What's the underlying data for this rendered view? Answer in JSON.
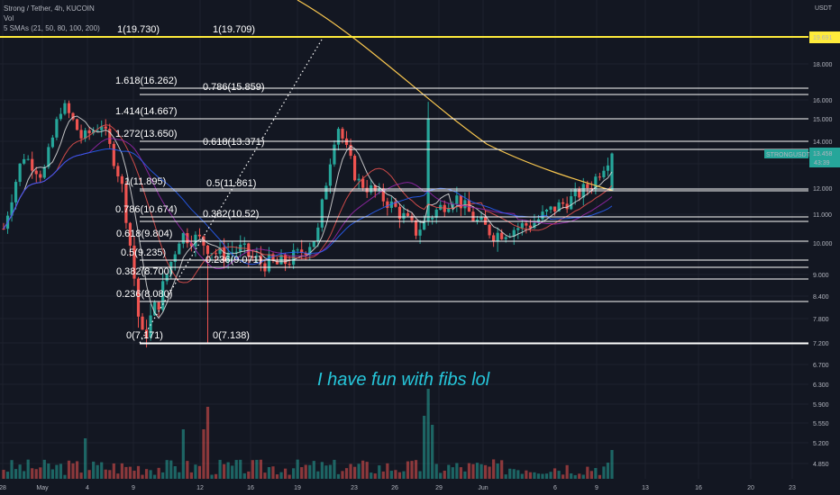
{
  "legend": {
    "title": "Strong / Tether, 4h, KUCOIN",
    "vol": "Vol",
    "smas": "5 SMAs (21, 50, 80, 100, 200)"
  },
  "price_axis": {
    "unit": "USDT",
    "ticks": [
      "18.000",
      "16.000",
      "15.000",
      "14.000",
      "13.000",
      "12.000",
      "11.000",
      "10.000",
      "9.000",
      "8.400",
      "7.800",
      "7.200",
      "6.700",
      "6.300",
      "5.900",
      "5.550",
      "5.200",
      "4.850"
    ],
    "top_badge": "19.691",
    "current_badge": {
      "symbol": "STRONGUSDT",
      "price": "13.458",
      "countdown": "43:39"
    }
  },
  "time_axis": [
    "28",
    "May",
    "4",
    "9",
    "12",
    "16",
    "19",
    "23",
    "26",
    "29",
    "Jun",
    "6",
    "9",
    "13",
    "16",
    "20",
    "23"
  ],
  "fib_left": [
    "1(19.730)",
    "1.618(16.262)",
    "1.414(14.667)",
    "1.272(13.650)",
    "1(11.895)",
    "0.786(10.674)",
    "0.618(9.804)",
    "0.5(9.235)",
    "0.382(8.700)",
    "0.236(8.080)",
    "0(7.171)"
  ],
  "fib_right": [
    "1(19.709)",
    "0.786(15.859)",
    "0.618(13.371)",
    "0.5(11.861)",
    "0.382(10.52)",
    "0.236(9.071)",
    "0(7.138)"
  ],
  "annotation": "I have fun with fibs lol",
  "colors": {
    "up": "#26a69a",
    "down": "#ef5350",
    "background": "#131722",
    "fib": "#ffffff",
    "top_line": "#ffeb3b",
    "annotation": "#26c6da"
  },
  "chart_data": {
    "type": "candlestick",
    "ylim": [
      7.0,
      20.3
    ],
    "close_path": [
      10.5,
      13.4,
      12.5,
      15.8,
      14.1,
      14.8,
      12.2,
      7.2,
      8.4,
      10.3,
      10.1,
      9.6,
      9.8,
      9.4,
      9.3,
      9.6,
      10.3,
      14.8,
      12.3,
      11.8,
      11.2,
      10.4,
      11.1,
      11.7,
      10.8,
      10.3,
      10.5,
      10.7,
      11.2,
      11.6,
      12.2,
      13.5
    ],
    "volume_bars": 110
  }
}
